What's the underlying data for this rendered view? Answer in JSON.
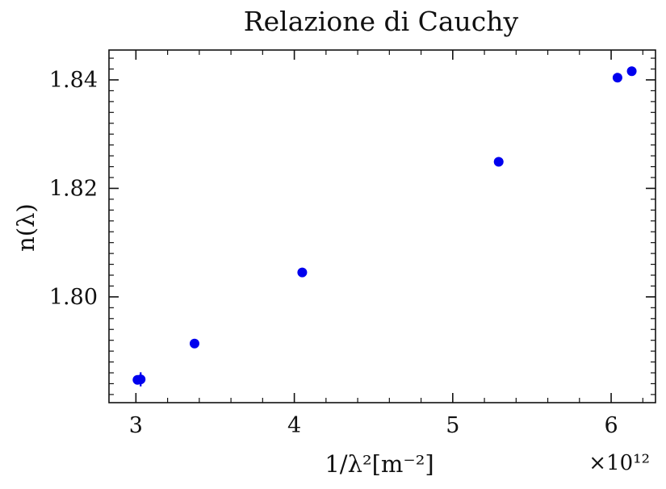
{
  "chart_data": {
    "type": "scatter",
    "title": "Relazione di Cauchy",
    "xlabel": "1/λ²[m⁻²]",
    "ylabel": "n(λ)",
    "x_offset_label": "×10¹²",
    "x_scale": 1000000000000.0,
    "xlim": [
      2.83,
      6.28
    ],
    "ylim": [
      1.7805,
      1.8455
    ],
    "x_ticks": [
      3,
      4,
      5,
      6
    ],
    "x_tick_labels": [
      "3",
      "4",
      "5",
      "6"
    ],
    "x_minor_ticks": [
      3.2,
      3.4,
      3.6,
      3.8,
      4.2,
      4.4,
      4.6,
      4.8,
      5.2,
      5.4,
      5.6,
      5.8,
      6.2
    ],
    "y_ticks": [
      1.8,
      1.82,
      1.84
    ],
    "y_tick_labels": [
      "1.80",
      "1.82",
      "1.84"
    ],
    "y_minor_ticks": [
      1.782,
      1.784,
      1.786,
      1.788,
      1.79,
      1.792,
      1.794,
      1.796,
      1.798,
      1.802,
      1.804,
      1.806,
      1.808,
      1.81,
      1.812,
      1.814,
      1.816,
      1.818,
      1.822,
      1.824,
      1.826,
      1.828,
      1.83,
      1.832,
      1.834,
      1.836,
      1.838,
      1.842,
      1.844
    ],
    "grid": false,
    "marker_color": "#0000ee",
    "points": [
      {
        "x": 3.01,
        "y": 1.7847,
        "yerr": 0.0004
      },
      {
        "x": 3.03,
        "y": 1.7848,
        "yerr": 0.0013
      },
      {
        "x": 3.37,
        "y": 1.7914,
        "yerr": 0.0004
      },
      {
        "x": 4.05,
        "y": 1.8045,
        "yerr": 0.0004
      },
      {
        "x": 5.29,
        "y": 1.8249,
        "yerr": 0.0004
      },
      {
        "x": 6.04,
        "y": 1.8404,
        "yerr": 0.0004
      },
      {
        "x": 6.13,
        "y": 1.8416,
        "yerr": 0.0004
      }
    ]
  }
}
